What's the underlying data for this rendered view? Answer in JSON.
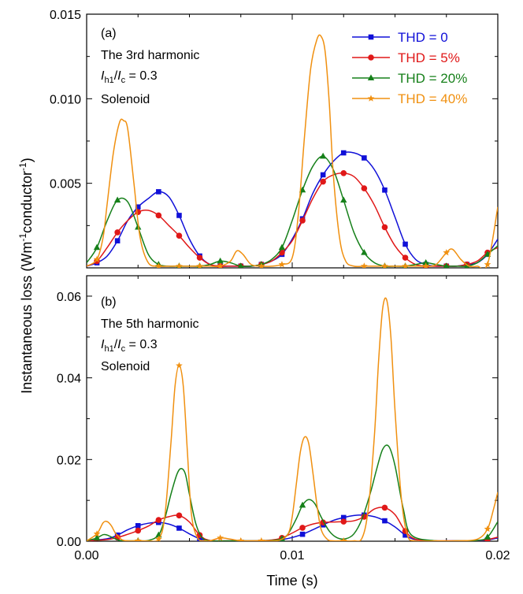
{
  "figure": {
    "ylabel": "Instantaneous loss (Wm-1conductor-1)",
    "ylabel_parts": {
      "a": "Instantaneous loss (Wm",
      "b": "-1",
      "c": "conductor",
      "d": "-1",
      "e": ")"
    },
    "xlabel": "Time (s)",
    "x_ticks": [
      "0.00",
      "0.01",
      "0.02"
    ]
  },
  "chart_data": [
    {
      "type": "line",
      "panel": "(a)",
      "annotations": {
        "line1": "The 3rd harmonic",
        "ratio_I": "I",
        "ratio_sub1": "h1",
        "ratio_slash": "/",
        "ratio_I2": "I",
        "ratio_sub2": "c",
        "ratio_val": " = 0.3",
        "line3": "Solenoid"
      },
      "xlim": [
        0.0,
        0.02
      ],
      "ylim": [
        0.0,
        0.015
      ],
      "y_ticks": [
        "0.005",
        "0.010",
        "0.015"
      ],
      "legend_position": "top-right",
      "series": [
        {
          "name": "THD = 0",
          "color": "#1010d8",
          "marker": "square",
          "x": [
            0.0,
            0.0005,
            0.001,
            0.0015,
            0.002,
            0.0025,
            0.003,
            0.0035,
            0.004,
            0.0045,
            0.005,
            0.0055,
            0.006,
            0.0065,
            0.007,
            0.0075,
            0.008,
            0.0085,
            0.009,
            0.0095,
            0.01,
            0.0105,
            0.011,
            0.0115,
            0.012,
            0.0125,
            0.013,
            0.0135,
            0.014,
            0.0145,
            0.015,
            0.0155,
            0.016,
            0.0165,
            0.017,
            0.0175,
            0.018,
            0.0185,
            0.019,
            0.0195,
            0.02
          ],
          "y": [
            0.0001,
            0.0003,
            0.0007,
            0.0016,
            0.0028,
            0.0036,
            0.0041,
            0.0045,
            0.0042,
            0.0031,
            0.0017,
            0.0007,
            0.0002,
            0.0001,
            0.0001,
            0.0001,
            0.0001,
            0.0002,
            0.0004,
            0.0008,
            0.0017,
            0.0029,
            0.0044,
            0.0055,
            0.0063,
            0.0068,
            0.0068,
            0.0065,
            0.0058,
            0.0046,
            0.003,
            0.0014,
            0.0005,
            0.0002,
            0.0001,
            0.0001,
            0.0001,
            0.0002,
            0.0003,
            0.0008,
            0.0017
          ]
        },
        {
          "name": "THD = 5%",
          "color": "#e01818",
          "marker": "circle",
          "x": [
            0.0,
            0.0005,
            0.001,
            0.0015,
            0.002,
            0.0025,
            0.003,
            0.0035,
            0.004,
            0.0045,
            0.005,
            0.0055,
            0.006,
            0.0065,
            0.007,
            0.0075,
            0.008,
            0.0085,
            0.009,
            0.0095,
            0.01,
            0.0105,
            0.011,
            0.0115,
            0.012,
            0.0125,
            0.013,
            0.0135,
            0.014,
            0.0145,
            0.015,
            0.0155,
            0.016,
            0.0165,
            0.017,
            0.0175,
            0.018,
            0.0185,
            0.019,
            0.0195,
            0.02
          ],
          "y": [
            0.0001,
            0.0004,
            0.0012,
            0.0021,
            0.0028,
            0.0033,
            0.0034,
            0.0031,
            0.0025,
            0.0019,
            0.0012,
            0.0006,
            0.0002,
            0.0001,
            0.0001,
            0.0001,
            0.0001,
            0.0002,
            0.0004,
            0.0009,
            0.0016,
            0.0028,
            0.0041,
            0.0051,
            0.0055,
            0.0056,
            0.0054,
            0.0047,
            0.0037,
            0.0024,
            0.0013,
            0.0006,
            0.0002,
            0.0001,
            0.0001,
            0.0001,
            0.0001,
            0.0002,
            0.0004,
            0.0009,
            0.0012
          ]
        },
        {
          "name": "THD = 20%",
          "color": "#16801a",
          "marker": "triangle",
          "x": [
            0.0,
            0.0005,
            0.001,
            0.0015,
            0.002,
            0.0025,
            0.003,
            0.0035,
            0.004,
            0.0045,
            0.005,
            0.0055,
            0.006,
            0.0065,
            0.007,
            0.0075,
            0.008,
            0.0085,
            0.009,
            0.0095,
            0.01,
            0.0105,
            0.011,
            0.0115,
            0.012,
            0.0125,
            0.013,
            0.0135,
            0.014,
            0.0145,
            0.015,
            0.0155,
            0.016,
            0.0165,
            0.017,
            0.0175,
            0.018,
            0.0185,
            0.019,
            0.0195,
            0.02
          ],
          "y": [
            0.0003,
            0.0012,
            0.0028,
            0.004,
            0.0039,
            0.0024,
            0.0008,
            0.0002,
            0.0001,
            0.0001,
            0.0001,
            0.0001,
            0.0002,
            0.0004,
            0.0003,
            0.0001,
            0.0001,
            0.0002,
            0.0005,
            0.0012,
            0.0028,
            0.0046,
            0.006,
            0.0066,
            0.0058,
            0.004,
            0.0021,
            0.0009,
            0.0003,
            0.0001,
            0.0001,
            0.0001,
            0.0002,
            0.0003,
            0.0002,
            0.0001,
            0.0001,
            0.0001,
            0.0003,
            0.0008,
            0.0013
          ]
        },
        {
          "name": "THD = 40%",
          "color": "#f09010",
          "marker": "star",
          "x": [
            0.0,
            0.0005,
            0.0008,
            0.001,
            0.0013,
            0.0016,
            0.0018,
            0.002,
            0.0023,
            0.0026,
            0.003,
            0.0035,
            0.004,
            0.0045,
            0.005,
            0.0055,
            0.006,
            0.0065,
            0.007,
            0.0073,
            0.0076,
            0.008,
            0.0085,
            0.009,
            0.0095,
            0.01,
            0.0103,
            0.0106,
            0.0109,
            0.0112,
            0.0114,
            0.0116,
            0.0118,
            0.012,
            0.0123,
            0.0126,
            0.013,
            0.0135,
            0.014,
            0.0145,
            0.015,
            0.0155,
            0.016,
            0.0165,
            0.017,
            0.0175,
            0.0178,
            0.0182,
            0.0186,
            0.019,
            0.0195,
            0.02
          ],
          "y": [
            0.0001,
            0.0005,
            0.0018,
            0.0038,
            0.0068,
            0.0086,
            0.0087,
            0.0082,
            0.005,
            0.0018,
            0.0003,
            0.0001,
            0.0001,
            0.0001,
            0.0001,
            0.0001,
            0.0001,
            0.0001,
            0.0004,
            0.001,
            0.0008,
            0.0002,
            0.0001,
            0.0001,
            0.0002,
            0.0006,
            0.0032,
            0.0078,
            0.0118,
            0.0135,
            0.0137,
            0.0128,
            0.0098,
            0.0055,
            0.0018,
            0.0004,
            0.0001,
            0.0001,
            0.0001,
            0.0001,
            0.0001,
            0.0001,
            0.0001,
            0.0001,
            0.0002,
            0.0009,
            0.0011,
            0.0005,
            0.0001,
            0.0001,
            0.0002,
            0.0036
          ]
        }
      ]
    },
    {
      "type": "line",
      "panel": "(b)",
      "annotations": {
        "line1": "The 5th harmonic",
        "ratio_I": "I",
        "ratio_sub1": "h1",
        "ratio_slash": "/",
        "ratio_I2": "I",
        "ratio_sub2": "c",
        "ratio_val": " = 0.3",
        "line3": "Solenoid"
      },
      "xlim": [
        0.0,
        0.02
      ],
      "ylim": [
        0.0,
        0.065
      ],
      "y_ticks": [
        "0.00",
        "0.02",
        "0.04",
        "0.06"
      ],
      "series": [
        {
          "name": "THD = 0",
          "color": "#1010d8",
          "marker": "square",
          "x": [
            0.0,
            0.001,
            0.0015,
            0.002,
            0.0025,
            0.003,
            0.0035,
            0.004,
            0.0045,
            0.005,
            0.0055,
            0.006,
            0.007,
            0.008,
            0.009,
            0.0095,
            0.01,
            0.0105,
            0.011,
            0.0115,
            0.012,
            0.0125,
            0.013,
            0.0135,
            0.014,
            0.0145,
            0.015,
            0.0155,
            0.016,
            0.017,
            0.018,
            0.019,
            0.0195,
            0.02
          ],
          "y": [
            0.0001,
            0.0006,
            0.0015,
            0.0028,
            0.0038,
            0.0044,
            0.0046,
            0.0042,
            0.0032,
            0.0018,
            0.0006,
            0.0001,
            0.0001,
            0.0001,
            0.0002,
            0.0004,
            0.0009,
            0.0017,
            0.0028,
            0.004,
            0.0051,
            0.0058,
            0.0063,
            0.0064,
            0.006,
            0.005,
            0.0035,
            0.0015,
            0.0004,
            0.0001,
            0.0001,
            0.0001,
            0.0003,
            0.0008
          ]
        },
        {
          "name": "THD = 5%",
          "color": "#e01818",
          "marker": "circle",
          "x": [
            0.0,
            0.001,
            0.0015,
            0.002,
            0.0025,
            0.003,
            0.0035,
            0.004,
            0.0045,
            0.005,
            0.0055,
            0.006,
            0.007,
            0.008,
            0.009,
            0.0095,
            0.01,
            0.0105,
            0.011,
            0.0115,
            0.012,
            0.0125,
            0.013,
            0.0135,
            0.014,
            0.0145,
            0.015,
            0.0155,
            0.016,
            0.017,
            0.018,
            0.019,
            0.0195,
            0.02
          ],
          "y": [
            0.0001,
            0.0004,
            0.0009,
            0.0017,
            0.0026,
            0.0037,
            0.0052,
            0.006,
            0.0063,
            0.0047,
            0.0015,
            0.0002,
            0.0001,
            0.0001,
            0.0003,
            0.0008,
            0.002,
            0.0033,
            0.0042,
            0.0046,
            0.0047,
            0.0048,
            0.005,
            0.006,
            0.0079,
            0.0082,
            0.0065,
            0.0025,
            0.0005,
            0.0001,
            0.0001,
            0.0002,
            0.0004,
            0.001
          ]
        },
        {
          "name": "THD = 20%",
          "color": "#16801a",
          "marker": "triangle",
          "x": [
            0.0,
            0.0005,
            0.0008,
            0.001,
            0.0013,
            0.0016,
            0.002,
            0.0025,
            0.003,
            0.0035,
            0.0038,
            0.0041,
            0.0044,
            0.0046,
            0.0048,
            0.005,
            0.0053,
            0.0056,
            0.006,
            0.007,
            0.008,
            0.009,
            0.0095,
            0.0098,
            0.0102,
            0.0105,
            0.0108,
            0.0111,
            0.0114,
            0.0118,
            0.0122,
            0.0126,
            0.013,
            0.0134,
            0.0138,
            0.0141,
            0.0144,
            0.0147,
            0.015,
            0.0154,
            0.0158,
            0.017,
            0.018,
            0.019,
            0.0195,
            0.02
          ],
          "y": [
            0.0001,
            0.0008,
            0.0016,
            0.0015,
            0.0008,
            0.0002,
            0.0001,
            0.0001,
            0.0002,
            0.0015,
            0.0055,
            0.0115,
            0.0165,
            0.0178,
            0.0165,
            0.0115,
            0.0045,
            0.001,
            0.0001,
            0.0001,
            0.0001,
            0.0002,
            0.0006,
            0.0018,
            0.0055,
            0.0088,
            0.0102,
            0.0092,
            0.006,
            0.0025,
            0.0008,
            0.0006,
            0.0018,
            0.0055,
            0.0118,
            0.0175,
            0.0225,
            0.0232,
            0.0185,
            0.008,
            0.0015,
            0.0001,
            0.0001,
            0.0002,
            0.001,
            0.0048
          ]
        },
        {
          "name": "THD = 40%",
          "color": "#f09010",
          "marker": "star",
          "x": [
            0.0,
            0.0005,
            0.0008,
            0.001,
            0.0012,
            0.0014,
            0.0017,
            0.002,
            0.0025,
            0.003,
            0.0035,
            0.0038,
            0.0041,
            0.0043,
            0.0045,
            0.0047,
            0.0049,
            0.0051,
            0.0054,
            0.0058,
            0.006,
            0.0065,
            0.007,
            0.0075,
            0.008,
            0.0085,
            0.009,
            0.0094,
            0.0098,
            0.01,
            0.0102,
            0.0104,
            0.0106,
            0.0108,
            0.011,
            0.0112,
            0.0114,
            0.0117,
            0.012,
            0.0125,
            0.013,
            0.0134,
            0.0137,
            0.014,
            0.0142,
            0.0144,
            0.0146,
            0.0148,
            0.015,
            0.0153,
            0.0156,
            0.016,
            0.017,
            0.018,
            0.019,
            0.0195,
            0.0198,
            0.02
          ],
          "y": [
            0.0001,
            0.0018,
            0.0045,
            0.0048,
            0.0038,
            0.002,
            0.0004,
            0.0001,
            0.0001,
            0.0001,
            0.0005,
            0.006,
            0.024,
            0.038,
            0.043,
            0.038,
            0.022,
            0.0065,
            0.0008,
            0.0001,
            0.0001,
            0.0008,
            0.0005,
            0.0001,
            0.0001,
            0.0001,
            0.0001,
            0.0003,
            0.0018,
            0.006,
            0.014,
            0.022,
            0.0255,
            0.024,
            0.017,
            0.009,
            0.003,
            0.0005,
            0.0001,
            0.0001,
            0.0001,
            0.0008,
            0.008,
            0.026,
            0.044,
            0.057,
            0.059,
            0.05,
            0.032,
            0.011,
            0.0015,
            0.0001,
            0.0001,
            0.0001,
            0.0005,
            0.003,
            0.008,
            0.012
          ]
        }
      ]
    }
  ]
}
